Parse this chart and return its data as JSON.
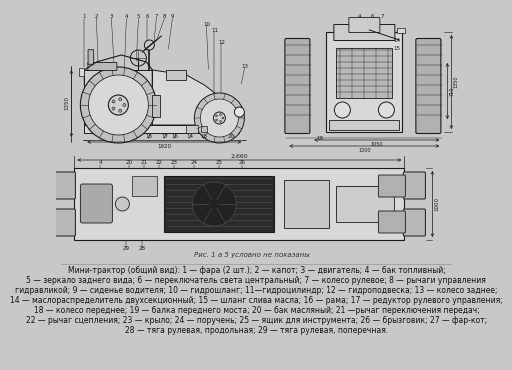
{
  "background_color": "#c8c8c8",
  "text_color": "#111111",
  "drawing_bg": "#d4d4d4",
  "line_color": "#1a1a1a",
  "caption_lines": [
    "Мини-трактор (общий вид): 1 — фара (2 шт.); 2 — капот; 3 — двигатель; 4 — бак топливный;",
    "5 — зеркало заднего вида; 6 — переключатель света центральный; 7 — колесо рулевое; 8 — рычаги управления",
    "гидравликой; 9 — сиденье водителя; 10 — гидрошланг; 11—гидроцилиндр; 12 — гидроподвеска; 13 — колесо заднее;",
    "14 — маслораспределитель двухсекционный; 15 — шланг слива масла; 16 — рама; 17 — редуктор рулевого управления;",
    "18 — колесо переднее; 19 — балка переднего моста; 20 — бак масляный; 21 —рычаг переключения передач;",
    "22 — рычаг сцепления; 23 — крыло; 24 — поручень; 25 — ящик для инструмента; 26 — брызговик; 27 — фар-кот;",
    "28 — тяга рулевая, продольная; 29 — тяга рулевая, поперечная."
  ],
  "caption_fontsize": 5.5,
  "italic_note": "Рис. 1 а 5 условно не показаны",
  "dim_1920": "1920",
  "dim_1350": "1350",
  "dim_2660": "2,660",
  "dim_1200": "1200",
  "dim_1050": "1050",
  "dim_1000": "1000",
  "dim_710": "710"
}
